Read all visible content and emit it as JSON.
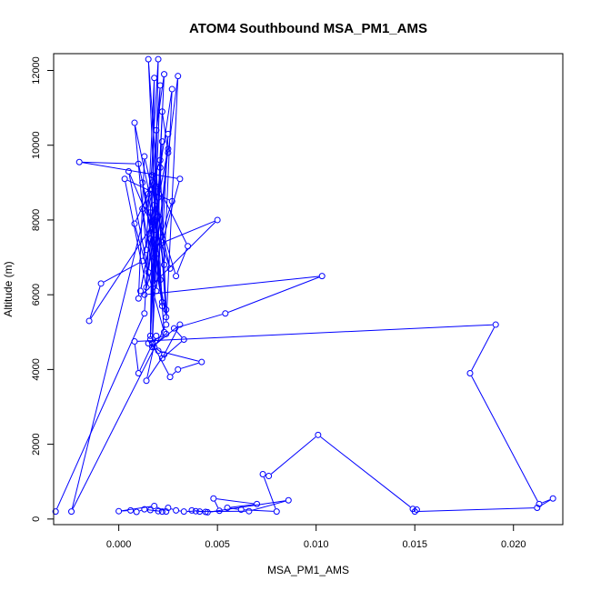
{
  "chart_data": {
    "type": "line",
    "title": "ATOM4 Southbound MSA_PM1_AMS",
    "xlabel": "MSA_PM1_AMS",
    "ylabel": "Altitude (m)",
    "xlim": [
      -0.0033,
      0.0225
    ],
    "ylim": [
      -150,
      12450
    ],
    "x_ticks": [
      0.0,
      0.005,
      0.01,
      0.015,
      0.02
    ],
    "x_tick_labels": [
      "0.000",
      "0.005",
      "0.010",
      "0.015",
      "0.020"
    ],
    "y_ticks": [
      0,
      2000,
      4000,
      6000,
      8000,
      10000,
      12000
    ],
    "y_tick_labels": [
      "0",
      "2000",
      "4000",
      "6000",
      "8000",
      "10000",
      "12000"
    ],
    "grid": false,
    "series": [
      {
        "color": "#0000ff",
        "marker": "open-circle",
        "x": [
          -0.0032,
          0.0013,
          0.0017,
          0.0021,
          0.0016,
          0.0019,
          0.0023,
          0.0018,
          0.0022,
          0.0025,
          0.003,
          0.0024,
          -0.0024,
          0.0016,
          0.002,
          0.0017,
          0.0022,
          0.0019,
          0.0015,
          0.0024,
          0.0021,
          0.0027,
          0.0023,
          0.0008,
          0.0014,
          0.0018,
          0.0016,
          0.0021,
          0.0012,
          0.0019,
          0.0025,
          0.0022,
          0.0031,
          -0.002,
          0.001,
          0.0017,
          0.0005,
          0.0015,
          0.002,
          0.0024,
          0.0012,
          0.0018,
          0.0027,
          0.0003,
          0.0014,
          0.0019,
          0.0022,
          0.0016,
          0.0026,
          0.0013,
          0.001,
          0.005,
          0.0018,
          0.0021,
          0.0015,
          0.0008,
          0.0023,
          0.0017,
          0.0035,
          0.0029,
          0.002,
          -0.0015,
          -0.0009,
          0.0012,
          0.0018,
          0.0022,
          0.0016,
          0.0011,
          0.0025,
          0.0019,
          0.0013,
          0.0103,
          0.0054,
          0.0028,
          0.0033,
          0.0022,
          0.0031,
          0.0017,
          0.0024,
          0.0015,
          0.002,
          0.0042,
          0.003,
          0.0026,
          0.0018,
          0.0023,
          0.0014,
          0.0019,
          0.001,
          0.0008,
          0.0191,
          0.0178,
          0.0213,
          0.022,
          0.0212,
          0.015,
          0.0151,
          0.0149,
          0.0101,
          0.0076,
          0.0073,
          0.008,
          0.0062,
          0.0055,
          0.007,
          0.0048,
          0.0051,
          0.0045,
          0.0086,
          0.0066,
          0.0041,
          0.0037,
          0.0044,
          0.0039,
          0.0033,
          0.0029,
          0.0025,
          0.002,
          0.0016,
          0.0022,
          0.0013,
          0.0009,
          0.0006,
          0.0,
          0.0018,
          0.0024
        ],
        "y": [
          200,
          5500,
          9000,
          11600,
          4800,
          10400,
          11900,
          6300,
          10900,
          9800,
          11850,
          5200,
          200,
          8800,
          12300,
          4700,
          10100,
          7600,
          12300,
          5600,
          9400,
          11500,
          6800,
          10600,
          7200,
          11800,
          4900,
          9600,
          8300,
          6100,
          10300,
          7400,
          9100,
          9550,
          9500,
          7800,
          9300,
          6600,
          8600,
          5400,
          9000,
          7000,
          8500,
          9100,
          6200,
          8900,
          5700,
          8200,
          6700,
          9700,
          5900,
          8000,
          7300,
          6400,
          8700,
          7900,
          5000,
          9200,
          7300,
          6500,
          8100,
          5300,
          6300,
          6900,
          8400,
          5800,
          7500,
          6100,
          9900,
          7100,
          6000,
          6500,
          5500,
          5100,
          4800,
          4300,
          5200,
          4600,
          4950,
          4700,
          4500,
          4200,
          4000,
          3800,
          4600,
          4400,
          3700,
          4900,
          3900,
          4750,
          5200,
          3900,
          400,
          550,
          300,
          200,
          250,
          270,
          2250,
          1150,
          1200,
          200,
          250,
          300,
          400,
          550,
          220,
          180,
          500,
          210,
          200,
          230,
          190,
          210,
          200,
          230,
          300,
          210,
          240,
          200,
          260,
          190,
          230,
          210,
          350,
          200
        ]
      }
    ]
  }
}
